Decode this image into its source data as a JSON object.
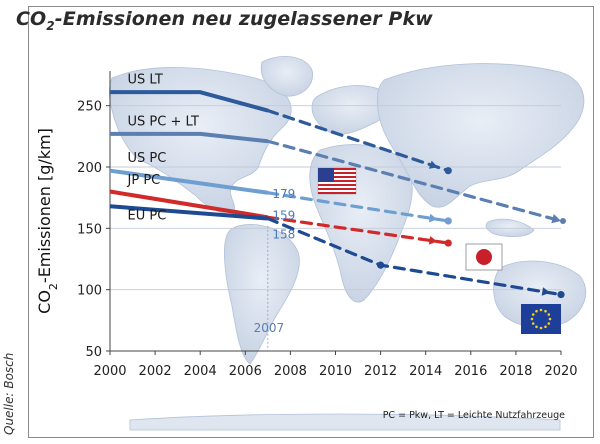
{
  "title_main": "CO",
  "title_sub": "2",
  "title_rest": "-Emissionen neu zugelassener Pkw",
  "source": "Quelle: Bosch",
  "footnote": "PC = Pkw, LT = Leichte Nutzfahrzeuge",
  "chart_data": {
    "type": "line",
    "title": "CO2-Emissionen neu zugelassener Pkw",
    "ylabel_main": "CO",
    "ylabel_sub": "2",
    "ylabel_rest": "-Emissionen [g/km]",
    "xlabel": "",
    "xlim": [
      2000,
      2020
    ],
    "ylim": [
      50,
      275
    ],
    "xticks": [
      2000,
      2002,
      2004,
      2006,
      2008,
      2010,
      2012,
      2014,
      2016,
      2018,
      2020
    ],
    "yticks": [
      50,
      100,
      150,
      200,
      250
    ],
    "grid": "horizontal",
    "series": [
      {
        "name": "US LT",
        "color": "#2d5a9a",
        "solid": [
          [
            2000,
            261
          ],
          [
            2004,
            261
          ],
          [
            2007,
            246
          ]
        ],
        "projection": [
          [
            2007,
            246
          ],
          [
            2015,
            197
          ]
        ],
        "end_marker": "dot"
      },
      {
        "name": "US PC + LT",
        "color": "#5a7fb0",
        "solid": [
          [
            2000,
            227
          ],
          [
            2004,
            227
          ],
          [
            2007,
            221
          ]
        ],
        "projection": [
          [
            2007,
            221
          ],
          [
            2020,
            156
          ]
        ],
        "end_marker": "arrow"
      },
      {
        "name": "US PC",
        "color": "#6f9fd0",
        "solid": [
          [
            2000,
            197
          ],
          [
            2007,
            179
          ]
        ],
        "projection": [
          [
            2007,
            179
          ],
          [
            2015,
            156
          ]
        ],
        "end_marker": "dot"
      },
      {
        "name": "JP PC",
        "color": "#d02a2a",
        "solid": [
          [
            2000,
            180
          ],
          [
            2007,
            159
          ]
        ],
        "projection": [
          [
            2007,
            159
          ],
          [
            2015,
            138
          ]
        ],
        "end_marker": "dot"
      },
      {
        "name": "EU PC",
        "color": "#1e4a92",
        "solid": [
          [
            2000,
            168
          ],
          [
            2007,
            158
          ]
        ],
        "projection": [
          [
            2007,
            158
          ],
          [
            2012,
            120
          ],
          [
            2020,
            96
          ]
        ],
        "end_marker": "dot",
        "mid_marker_x": 2012
      }
    ],
    "data_labels": [
      {
        "x": 2007,
        "y": 179,
        "text": "179",
        "color": "#4b7bbf"
      },
      {
        "x": 2007,
        "y": 159,
        "text": "159",
        "color": "#4b7bbf"
      },
      {
        "x": 2007,
        "y": 158,
        "text": "158",
        "color": "#4b7bbf"
      }
    ],
    "year_marker": {
      "x": 2007,
      "text": "2007"
    }
  },
  "flags": [
    "usa-flag",
    "japan-flag",
    "eu-flag"
  ]
}
